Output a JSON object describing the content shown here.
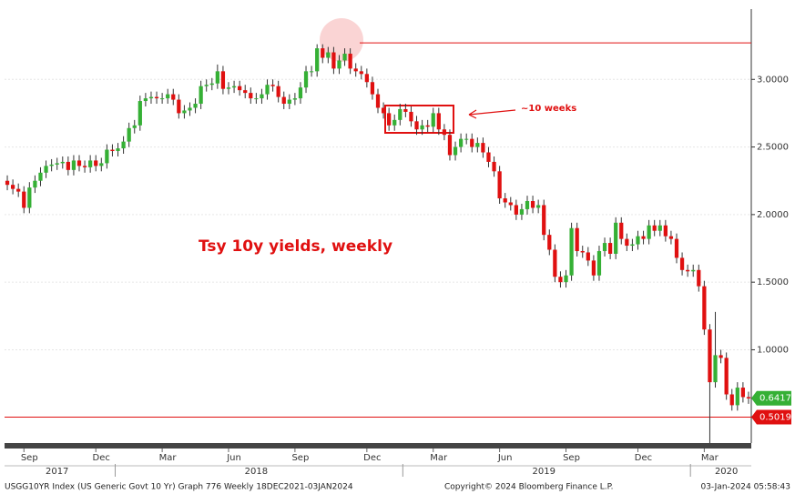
{
  "chart_data": {
    "type": "candlestick",
    "title": "Tsy 10y yields, weekly",
    "annotation": "~10 weeks",
    "up_color": "#35b035",
    "down_color": "#e01010",
    "open": [
      2.25,
      2.22,
      2.19,
      2.17,
      2.05,
      2.2,
      2.25,
      2.31,
      2.36,
      2.37,
      2.38,
      2.39,
      2.33,
      2.4,
      2.36,
      2.35,
      2.4,
      2.36,
      2.38,
      2.48,
      2.47,
      2.49,
      2.54,
      2.64,
      2.66,
      2.84,
      2.86,
      2.87,
      2.86,
      2.86,
      2.89,
      2.85,
      2.75,
      2.77,
      2.79,
      2.82,
      2.95,
      2.96,
      2.97,
      3.06,
      2.93,
      2.94,
      2.95,
      2.92,
      2.9,
      2.86,
      2.86,
      2.89,
      2.96,
      2.95,
      2.87,
      2.82,
      2.85,
      2.86,
      2.94,
      3.06,
      3.06,
      3.23,
      3.16,
      3.2,
      3.08,
      3.14,
      3.19,
      3.08,
      3.06,
      3.04,
      2.98,
      2.89,
      2.79,
      2.75,
      2.66,
      2.7,
      2.78,
      2.76,
      2.69,
      2.63,
      2.66,
      2.65,
      2.75,
      2.63,
      2.59,
      2.44,
      2.5,
      2.56,
      2.56,
      2.5,
      2.53,
      2.46,
      2.39,
      2.32,
      2.12,
      2.09,
      2.07,
      2.0,
      2.04,
      2.1,
      2.05,
      2.07,
      1.85,
      1.74,
      1.54,
      1.5,
      1.55,
      1.9,
      1.73,
      1.72,
      1.66,
      1.55,
      1.73,
      1.79,
      1.71,
      1.94,
      1.82,
      1.77,
      1.78,
      1.84,
      1.82,
      1.92,
      1.88,
      1.92,
      1.84,
      1.82,
      1.68,
      1.59,
      1.58,
      1.59,
      1.47,
      1.15,
      0.76,
      0.96,
      0.94,
      0.67,
      0.59,
      0.72,
      0.65
    ],
    "high": [
      2.29,
      2.26,
      2.23,
      2.21,
      2.24,
      2.29,
      2.35,
      2.4,
      2.41,
      2.42,
      2.43,
      2.43,
      2.44,
      2.44,
      2.4,
      2.44,
      2.44,
      2.42,
      2.52,
      2.52,
      2.53,
      2.58,
      2.68,
      2.7,
      2.88,
      2.9,
      2.91,
      2.91,
      2.9,
      2.93,
      2.93,
      2.89,
      2.81,
      2.83,
      2.86,
      2.99,
      3.0,
      3.01,
      3.11,
      3.1,
      2.98,
      2.99,
      2.99,
      2.96,
      2.94,
      2.9,
      2.93,
      3.0,
      3.0,
      2.99,
      2.91,
      2.89,
      2.9,
      2.98,
      3.1,
      3.1,
      3.26,
      3.26,
      3.24,
      3.24,
      3.18,
      3.23,
      3.23,
      3.12,
      3.1,
      3.08,
      3.02,
      2.93,
      2.83,
      2.79,
      2.74,
      2.82,
      2.82,
      2.8,
      2.73,
      2.7,
      2.7,
      2.79,
      2.79,
      2.67,
      2.63,
      2.54,
      2.6,
      2.6,
      2.6,
      2.57,
      2.57,
      2.5,
      2.43,
      2.36,
      2.16,
      2.13,
      2.11,
      2.08,
      2.14,
      2.14,
      2.11,
      2.11,
      1.89,
      1.78,
      1.58,
      1.59,
      1.94,
      1.94,
      1.77,
      1.76,
      1.7,
      1.77,
      1.83,
      1.83,
      1.98,
      1.98,
      1.86,
      1.82,
      1.88,
      1.88,
      1.96,
      1.96,
      1.96,
      1.96,
      1.88,
      1.86,
      1.72,
      1.63,
      1.63,
      1.63,
      1.51,
      1.19,
      1.28,
      1.0,
      0.98,
      0.71,
      0.76,
      0.76,
      0.69
    ],
    "low": [
      2.18,
      2.15,
      2.13,
      2.01,
      2.01,
      2.16,
      2.21,
      2.27,
      2.32,
      2.33,
      2.34,
      2.29,
      2.29,
      2.32,
      2.31,
      2.31,
      2.32,
      2.32,
      2.34,
      2.43,
      2.43,
      2.45,
      2.5,
      2.6,
      2.62,
      2.8,
      2.82,
      2.82,
      2.82,
      2.82,
      2.81,
      2.71,
      2.71,
      2.73,
      2.75,
      2.78,
      2.91,
      2.92,
      2.93,
      2.89,
      2.89,
      2.9,
      2.88,
      2.86,
      2.82,
      2.82,
      2.82,
      2.85,
      2.91,
      2.83,
      2.78,
      2.78,
      2.81,
      2.82,
      2.9,
      3.02,
      3.02,
      3.12,
      3.12,
      3.04,
      3.04,
      3.1,
      3.04,
      3.02,
      3.0,
      2.94,
      2.85,
      2.75,
      2.71,
      2.62,
      2.62,
      2.66,
      2.72,
      2.65,
      2.59,
      2.59,
      2.61,
      2.61,
      2.59,
      2.55,
      2.4,
      2.4,
      2.46,
      2.52,
      2.46,
      2.46,
      2.42,
      2.35,
      2.28,
      2.08,
      2.05,
      2.03,
      1.96,
      1.96,
      2.0,
      2.01,
      2.01,
      1.81,
      1.7,
      1.5,
      1.46,
      1.46,
      1.51,
      1.69,
      1.68,
      1.62,
      1.51,
      1.51,
      1.69,
      1.67,
      1.67,
      1.78,
      1.73,
      1.73,
      1.74,
      1.78,
      1.78,
      1.84,
      1.84,
      1.8,
      1.78,
      1.64,
      1.55,
      1.54,
      1.54,
      1.43,
      1.11,
      0.31,
      0.72,
      0.9,
      0.63,
      0.55,
      0.55,
      0.61,
      0.6
    ],
    "close": [
      2.22,
      2.19,
      2.17,
      2.05,
      2.2,
      2.25,
      2.31,
      2.36,
      2.37,
      2.38,
      2.39,
      2.33,
      2.4,
      2.36,
      2.35,
      2.4,
      2.36,
      2.38,
      2.48,
      2.47,
      2.49,
      2.54,
      2.64,
      2.66,
      2.84,
      2.86,
      2.87,
      2.86,
      2.86,
      2.89,
      2.85,
      2.75,
      2.77,
      2.79,
      2.82,
      2.95,
      2.96,
      2.97,
      3.06,
      2.93,
      2.94,
      2.95,
      2.92,
      2.9,
      2.86,
      2.86,
      2.89,
      2.96,
      2.95,
      2.87,
      2.82,
      2.85,
      2.86,
      2.94,
      3.06,
      3.06,
      3.23,
      3.16,
      3.2,
      3.08,
      3.14,
      3.19,
      3.08,
      3.06,
      3.04,
      2.98,
      2.89,
      2.79,
      2.75,
      2.66,
      2.7,
      2.78,
      2.76,
      2.69,
      2.63,
      2.66,
      2.65,
      2.75,
      2.63,
      2.59,
      2.44,
      2.5,
      2.56,
      2.56,
      2.5,
      2.53,
      2.46,
      2.39,
      2.32,
      2.12,
      2.09,
      2.07,
      2.0,
      2.04,
      2.1,
      2.05,
      2.07,
      1.85,
      1.74,
      1.54,
      1.5,
      1.55,
      1.9,
      1.73,
      1.72,
      1.66,
      1.55,
      1.73,
      1.79,
      1.71,
      1.94,
      1.82,
      1.77,
      1.78,
      1.84,
      1.82,
      1.92,
      1.88,
      1.92,
      1.84,
      1.82,
      1.68,
      1.59,
      1.58,
      1.59,
      1.47,
      1.15,
      0.76,
      0.96,
      0.94,
      0.67,
      0.59,
      0.72,
      0.65,
      0.64
    ],
    "ylim": [
      0.31,
      3.52
    ],
    "yticks": [
      {
        "value": 1,
        "label": "1.0000"
      },
      {
        "value": 1.5,
        "label": "1.5000"
      },
      {
        "value": 2,
        "label": "2.0000"
      },
      {
        "value": 2.5,
        "label": "2.5000"
      },
      {
        "value": 3,
        "label": "3.0000"
      }
    ],
    "xticks": [
      {
        "value": 3,
        "label": "Sep"
      },
      {
        "value": 16,
        "label": "Dec"
      },
      {
        "value": 28,
        "label": "Mar"
      },
      {
        "value": 40,
        "label": "Jun"
      },
      {
        "value": 52,
        "label": "Sep"
      },
      {
        "value": 65,
        "label": "Dec"
      },
      {
        "value": 77,
        "label": "Mar"
      },
      {
        "value": 89,
        "label": "Jun"
      },
      {
        "value": 101,
        "label": "Sep"
      },
      {
        "value": 114,
        "label": "Dec"
      },
      {
        "value": 126,
        "label": "Mar"
      }
    ],
    "year_ticks": [
      {
        "value": 9,
        "label": "2017"
      },
      {
        "value": 45,
        "label": "2018"
      },
      {
        "value": 97,
        "label": "2019"
      },
      {
        "value": 130,
        "label": "2020"
      }
    ],
    "year_starts": [
      20,
      72,
      124
    ],
    "reference_lines": [
      3.27
    ],
    "price_labels": [
      {
        "value": 0.6417,
        "label": "0.6417",
        "color": "#35b035"
      },
      {
        "value": 0.5019,
        "label": "0.5019",
        "color": "#e01010"
      }
    ],
    "footer": {
      "left": "USGG10YR Index (US Generic Govt 10 Yr) Graph 776  Weekly 18DEC2021-03JAN2024",
      "center": "Copyright© 2024 Bloomberg Finance L.P.",
      "right": "03-Jan-2024 05:58:43"
    }
  }
}
